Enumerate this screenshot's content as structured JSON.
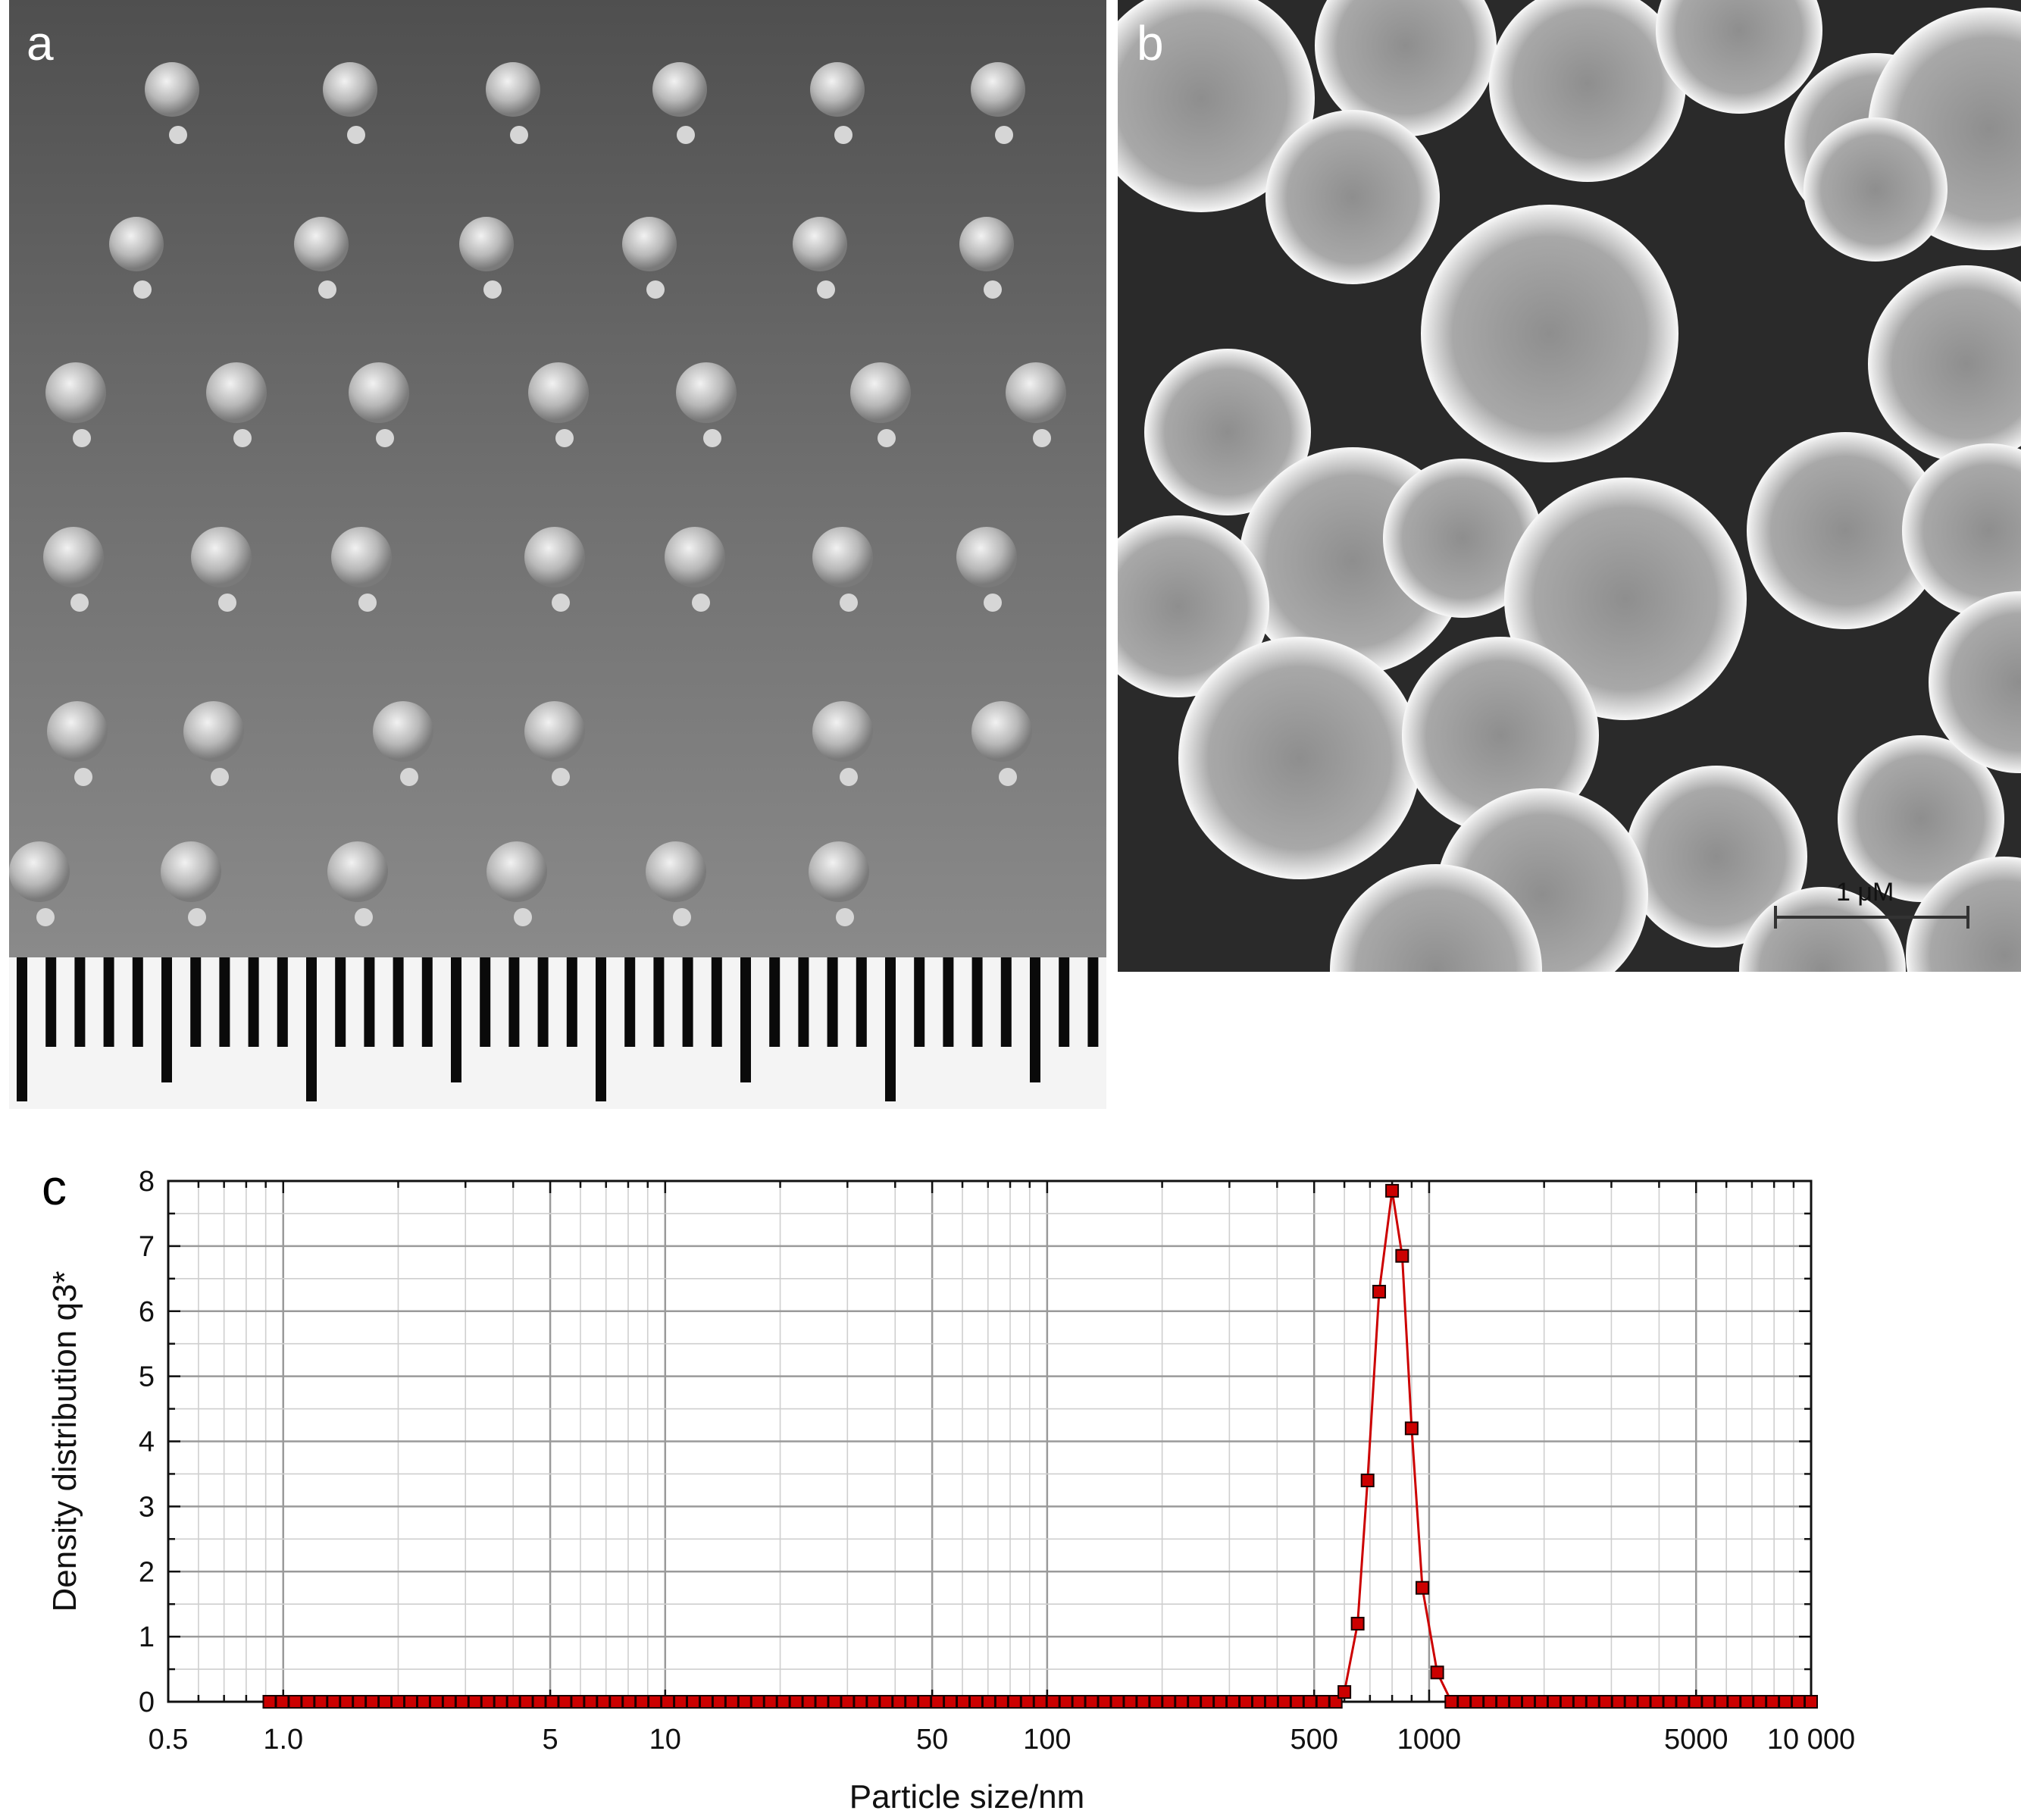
{
  "panels": {
    "a": {
      "letter": "a"
    },
    "b": {
      "letter": "b",
      "scale_bar_label": "1 μM"
    },
    "c": {
      "letter": "c"
    }
  },
  "chart_data": {
    "type": "line",
    "x_scale": "log",
    "xlabel": "Particle size/nm",
    "ylabel": "Density distribution q3*",
    "xlim": [
      0.5,
      10000
    ],
    "ylim": [
      0,
      8
    ],
    "x_ticks": [
      {
        "value": 0.5,
        "label": "0.5"
      },
      {
        "value": 1,
        "label": "1.0"
      },
      {
        "value": 5,
        "label": "5"
      },
      {
        "value": 10,
        "label": "10"
      },
      {
        "value": 50,
        "label": "50"
      },
      {
        "value": 100,
        "label": "100"
      },
      {
        "value": 500,
        "label": "500"
      },
      {
        "value": 1000,
        "label": "1000"
      },
      {
        "value": 5000,
        "label": "5000"
      },
      {
        "value": 10000,
        "label": "10 000"
      }
    ],
    "y_ticks": [
      0,
      1,
      2,
      3,
      4,
      5,
      6,
      7,
      8
    ],
    "grid": true,
    "series": [
      {
        "color": "#cc0000",
        "marker": "square",
        "peak_points": [
          {
            "x": 600,
            "y": 0.15
          },
          {
            "x": 650,
            "y": 1.2
          },
          {
            "x": 690,
            "y": 3.4
          },
          {
            "x": 740,
            "y": 6.3
          },
          {
            "x": 800,
            "y": 7.85
          },
          {
            "x": 850,
            "y": 6.85
          },
          {
            "x": 900,
            "y": 4.2
          },
          {
            "x": 960,
            "y": 1.75
          },
          {
            "x": 1050,
            "y": 0.45
          }
        ],
        "baseline_range": [
          0.92,
          10000
        ],
        "baseline_value": 0
      }
    ]
  }
}
